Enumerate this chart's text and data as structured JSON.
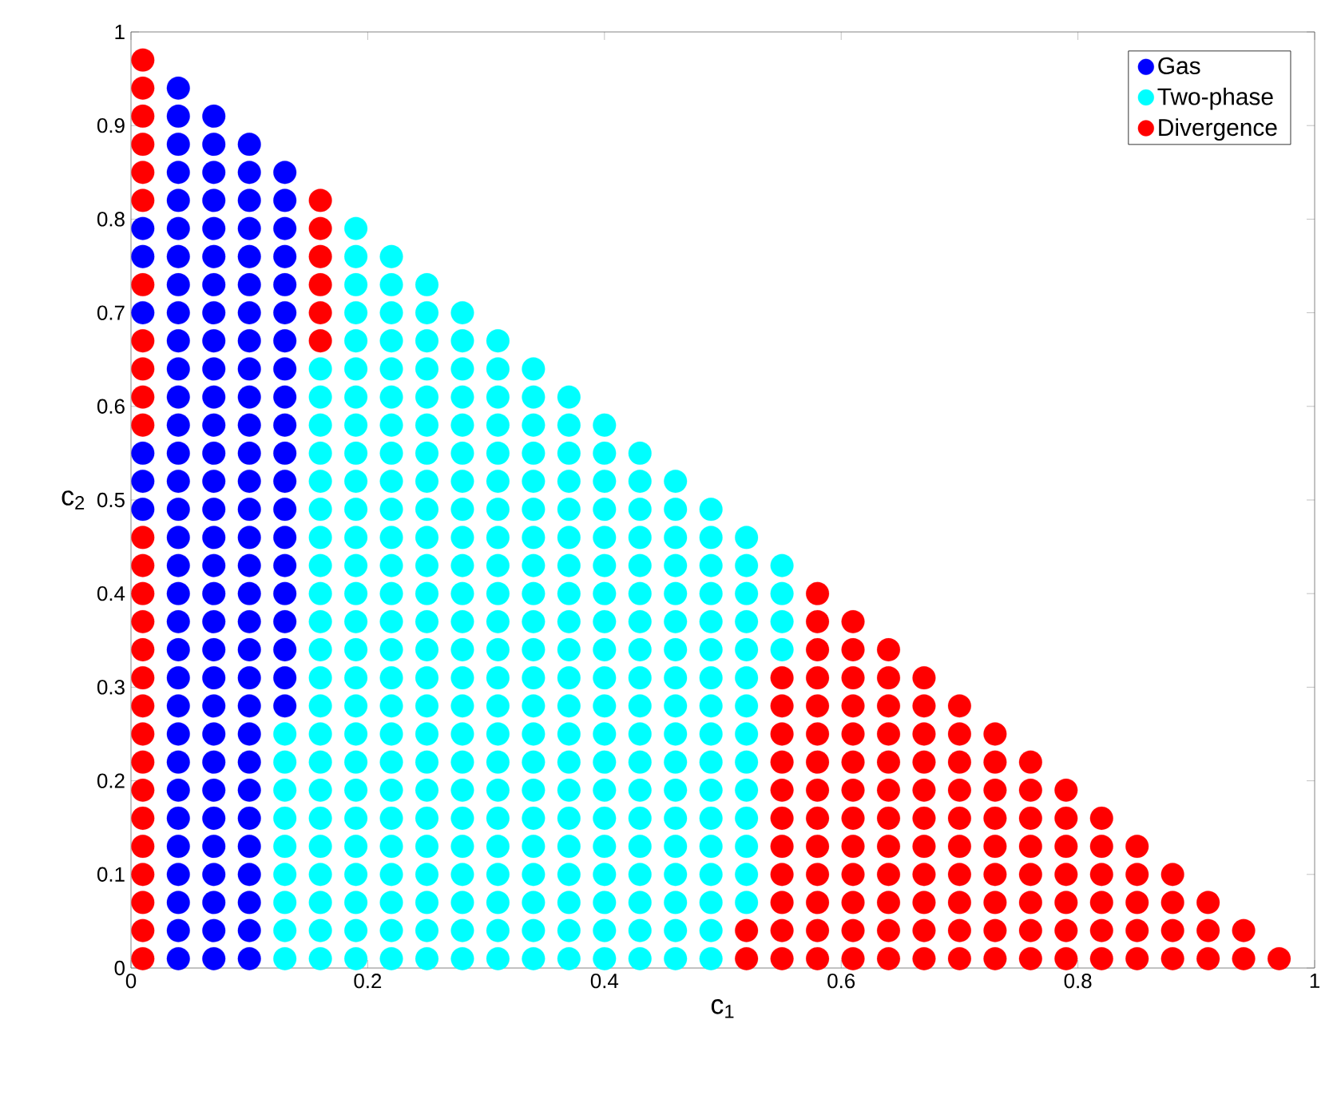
{
  "chart_data": {
    "type": "scatter",
    "xlabel": "c$_{1}$",
    "ylabel": "c$_{2}$",
    "xlim": [
      0,
      1
    ],
    "ylim": [
      0,
      1
    ],
    "xticks": [
      0,
      0.2,
      0.4,
      0.6,
      0.8,
      1
    ],
    "yticks": [
      0,
      0.1,
      0.2,
      0.3,
      0.4,
      0.5,
      0.6,
      0.7,
      0.8,
      0.9,
      1
    ],
    "legend": "top right",
    "marker": "circle",
    "series": [
      {
        "name": "Gas",
        "color": "#0000ff",
        "x": [
          0.01,
          0.01,
          0.01,
          0.01,
          0.01,
          0.01,
          0.04,
          0.04,
          0.04,
          0.04,
          0.04,
          0.04,
          0.04,
          0.04,
          0.04,
          0.04,
          0.04,
          0.04,
          0.04,
          0.04,
          0.04,
          0.04,
          0.04,
          0.04,
          0.04,
          0.04,
          0.04,
          0.04,
          0.04,
          0.04,
          0.04,
          0.04,
          0.04,
          0.04,
          0.04,
          0.04,
          0.04,
          0.04,
          0.07,
          0.07,
          0.07,
          0.07,
          0.07,
          0.07,
          0.07,
          0.07,
          0.07,
          0.07,
          0.07,
          0.07,
          0.07,
          0.07,
          0.07,
          0.07,
          0.07,
          0.07,
          0.07,
          0.07,
          0.07,
          0.07,
          0.07,
          0.07,
          0.07,
          0.07,
          0.07,
          0.07,
          0.07,
          0.07,
          0.07,
          0.1,
          0.1,
          0.1,
          0.1,
          0.1,
          0.1,
          0.1,
          0.1,
          0.1,
          0.1,
          0.1,
          0.1,
          0.1,
          0.1,
          0.1,
          0.1,
          0.1,
          0.1,
          0.1,
          0.1,
          0.1,
          0.1,
          0.1,
          0.1,
          0.1,
          0.1,
          0.1,
          0.1,
          0.1,
          0.1,
          0.13,
          0.13,
          0.13,
          0.13,
          0.13,
          0.13,
          0.13,
          0.13,
          0.13,
          0.13,
          0.13,
          0.13,
          0.13,
          0.13,
          0.13,
          0.13,
          0.13,
          0.13,
          0.13,
          0.13
        ],
        "values": [
          0.49,
          0.52,
          0.55,
          0.7,
          0.76,
          0.79,
          0.01,
          0.04,
          0.07,
          0.1,
          0.13,
          0.16,
          0.19,
          0.22,
          0.25,
          0.28,
          0.31,
          0.34,
          0.37,
          0.4,
          0.43,
          0.46,
          0.49,
          0.52,
          0.55,
          0.58,
          0.61,
          0.64,
          0.67,
          0.7,
          0.73,
          0.76,
          0.79,
          0.82,
          0.85,
          0.88,
          0.91,
          0.94,
          0.01,
          0.04,
          0.07,
          0.1,
          0.13,
          0.16,
          0.19,
          0.22,
          0.25,
          0.28,
          0.31,
          0.34,
          0.37,
          0.4,
          0.43,
          0.46,
          0.49,
          0.52,
          0.55,
          0.58,
          0.61,
          0.64,
          0.67,
          0.7,
          0.73,
          0.76,
          0.79,
          0.82,
          0.85,
          0.88,
          0.91,
          0.01,
          0.04,
          0.07,
          0.1,
          0.13,
          0.16,
          0.19,
          0.22,
          0.25,
          0.28,
          0.31,
          0.34,
          0.37,
          0.4,
          0.43,
          0.46,
          0.49,
          0.52,
          0.55,
          0.58,
          0.61,
          0.64,
          0.67,
          0.7,
          0.73,
          0.76,
          0.79,
          0.82,
          0.85,
          0.88,
          0.28,
          0.31,
          0.34,
          0.37,
          0.4,
          0.43,
          0.46,
          0.49,
          0.52,
          0.55,
          0.58,
          0.61,
          0.64,
          0.67,
          0.7,
          0.73,
          0.76,
          0.79,
          0.82,
          0.85
        ]
      },
      {
        "name": "Two-phase",
        "color": "#00ffff",
        "x": [
          0.13,
          0.13,
          0.13,
          0.13,
          0.13,
          0.13,
          0.13,
          0.13,
          0.13,
          0.16,
          0.16,
          0.16,
          0.16,
          0.16,
          0.16,
          0.16,
          0.16,
          0.16,
          0.16,
          0.16,
          0.16,
          0.16,
          0.16,
          0.16,
          0.16,
          0.16,
          0.16,
          0.16,
          0.16,
          0.16,
          0.16,
          0.19,
          0.19,
          0.19,
          0.19,
          0.19,
          0.19,
          0.19,
          0.19,
          0.19,
          0.19,
          0.19,
          0.19,
          0.19,
          0.19,
          0.19,
          0.19,
          0.19,
          0.19,
          0.19,
          0.19,
          0.19,
          0.19,
          0.19,
          0.19,
          0.19,
          0.19,
          0.19,
          0.22,
          0.22,
          0.22,
          0.22,
          0.22,
          0.22,
          0.22,
          0.22,
          0.22,
          0.22,
          0.22,
          0.22,
          0.22,
          0.22,
          0.22,
          0.22,
          0.22,
          0.22,
          0.22,
          0.22,
          0.22,
          0.22,
          0.22,
          0.22,
          0.22,
          0.22,
          0.25,
          0.25,
          0.25,
          0.25,
          0.25,
          0.25,
          0.25,
          0.25,
          0.25,
          0.25,
          0.25,
          0.25,
          0.25,
          0.25,
          0.25,
          0.25,
          0.25,
          0.25,
          0.25,
          0.25,
          0.25,
          0.25,
          0.25,
          0.25,
          0.25,
          0.28,
          0.28,
          0.28,
          0.28,
          0.28,
          0.28,
          0.28,
          0.28,
          0.28,
          0.28,
          0.28,
          0.28,
          0.28,
          0.28,
          0.28,
          0.28,
          0.28,
          0.28,
          0.28,
          0.28,
          0.28,
          0.28,
          0.28,
          0.28,
          0.31,
          0.31,
          0.31,
          0.31,
          0.31,
          0.31,
          0.31,
          0.31,
          0.31,
          0.31,
          0.31,
          0.31,
          0.31,
          0.31,
          0.31,
          0.31,
          0.31,
          0.31,
          0.31,
          0.31,
          0.31,
          0.31,
          0.31,
          0.34,
          0.34,
          0.34,
          0.34,
          0.34,
          0.34,
          0.34,
          0.34,
          0.34,
          0.34,
          0.34,
          0.34,
          0.34,
          0.34,
          0.34,
          0.34,
          0.34,
          0.34,
          0.34,
          0.34,
          0.34,
          0.34,
          0.37,
          0.37,
          0.37,
          0.37,
          0.37,
          0.37,
          0.37,
          0.37,
          0.37,
          0.37,
          0.37,
          0.37,
          0.37,
          0.37,
          0.37,
          0.37,
          0.37,
          0.37,
          0.37,
          0.37,
          0.37,
          0.4,
          0.4,
          0.4,
          0.4,
          0.4,
          0.4,
          0.4,
          0.4,
          0.4,
          0.4,
          0.4,
          0.4,
          0.4,
          0.4,
          0.4,
          0.4,
          0.4,
          0.4,
          0.4,
          0.4,
          0.43,
          0.43,
          0.43,
          0.43,
          0.43,
          0.43,
          0.43,
          0.43,
          0.43,
          0.43,
          0.43,
          0.43,
          0.43,
          0.43,
          0.43,
          0.43,
          0.43,
          0.43,
          0.43,
          0.46,
          0.46,
          0.46,
          0.46,
          0.46,
          0.46,
          0.46,
          0.46,
          0.46,
          0.46,
          0.46,
          0.46,
          0.46,
          0.46,
          0.46,
          0.46,
          0.46,
          0.46,
          0.49,
          0.49,
          0.49,
          0.49,
          0.49,
          0.49,
          0.49,
          0.49,
          0.49,
          0.49,
          0.49,
          0.49,
          0.49,
          0.49,
          0.49,
          0.49,
          0.49,
          0.52,
          0.52,
          0.52,
          0.52,
          0.52,
          0.52,
          0.52,
          0.52,
          0.52,
          0.52,
          0.52,
          0.52,
          0.52,
          0.52,
          0.55,
          0.55,
          0.55,
          0.55
        ],
        "values": [
          0.01,
          0.04,
          0.07,
          0.1,
          0.13,
          0.16,
          0.19,
          0.22,
          0.25,
          0.01,
          0.04,
          0.07,
          0.1,
          0.13,
          0.16,
          0.19,
          0.22,
          0.25,
          0.28,
          0.31,
          0.34,
          0.37,
          0.4,
          0.43,
          0.46,
          0.49,
          0.52,
          0.55,
          0.58,
          0.61,
          0.64,
          0.01,
          0.04,
          0.07,
          0.1,
          0.13,
          0.16,
          0.19,
          0.22,
          0.25,
          0.28,
          0.31,
          0.34,
          0.37,
          0.4,
          0.43,
          0.46,
          0.49,
          0.52,
          0.55,
          0.58,
          0.61,
          0.64,
          0.67,
          0.7,
          0.73,
          0.76,
          0.79,
          0.01,
          0.04,
          0.07,
          0.1,
          0.13,
          0.16,
          0.19,
          0.22,
          0.25,
          0.28,
          0.31,
          0.34,
          0.37,
          0.4,
          0.43,
          0.46,
          0.49,
          0.52,
          0.55,
          0.58,
          0.61,
          0.64,
          0.67,
          0.7,
          0.73,
          0.76,
          0.01,
          0.04,
          0.07,
          0.1,
          0.13,
          0.16,
          0.19,
          0.22,
          0.25,
          0.28,
          0.31,
          0.34,
          0.37,
          0.4,
          0.43,
          0.46,
          0.49,
          0.52,
          0.55,
          0.58,
          0.61,
          0.64,
          0.67,
          0.7,
          0.73,
          0.01,
          0.04,
          0.07,
          0.1,
          0.13,
          0.16,
          0.19,
          0.22,
          0.25,
          0.28,
          0.31,
          0.34,
          0.37,
          0.4,
          0.43,
          0.46,
          0.49,
          0.52,
          0.55,
          0.58,
          0.61,
          0.64,
          0.67,
          0.7,
          0.01,
          0.04,
          0.07,
          0.1,
          0.13,
          0.16,
          0.19,
          0.22,
          0.25,
          0.28,
          0.31,
          0.34,
          0.37,
          0.4,
          0.43,
          0.46,
          0.49,
          0.52,
          0.55,
          0.58,
          0.61,
          0.64,
          0.67,
          0.01,
          0.04,
          0.07,
          0.1,
          0.13,
          0.16,
          0.19,
          0.22,
          0.25,
          0.28,
          0.31,
          0.34,
          0.37,
          0.4,
          0.43,
          0.46,
          0.49,
          0.52,
          0.55,
          0.58,
          0.61,
          0.64,
          0.01,
          0.04,
          0.07,
          0.1,
          0.13,
          0.16,
          0.19,
          0.22,
          0.25,
          0.28,
          0.31,
          0.34,
          0.37,
          0.4,
          0.43,
          0.46,
          0.49,
          0.52,
          0.55,
          0.58,
          0.61,
          0.01,
          0.04,
          0.07,
          0.1,
          0.13,
          0.16,
          0.19,
          0.22,
          0.25,
          0.28,
          0.31,
          0.34,
          0.37,
          0.4,
          0.43,
          0.46,
          0.49,
          0.52,
          0.55,
          0.58,
          0.01,
          0.04,
          0.07,
          0.1,
          0.13,
          0.16,
          0.19,
          0.22,
          0.25,
          0.28,
          0.31,
          0.34,
          0.37,
          0.4,
          0.43,
          0.46,
          0.49,
          0.52,
          0.55,
          0.01,
          0.04,
          0.07,
          0.1,
          0.13,
          0.16,
          0.19,
          0.22,
          0.25,
          0.28,
          0.31,
          0.34,
          0.37,
          0.4,
          0.43,
          0.46,
          0.49,
          0.52,
          0.01,
          0.04,
          0.07,
          0.1,
          0.13,
          0.16,
          0.19,
          0.22,
          0.25,
          0.28,
          0.31,
          0.34,
          0.37,
          0.4,
          0.43,
          0.46,
          0.49,
          0.07,
          0.1,
          0.13,
          0.16,
          0.19,
          0.22,
          0.25,
          0.28,
          0.31,
          0.34,
          0.37,
          0.4,
          0.43,
          0.46,
          0.34,
          0.37,
          0.4,
          0.43
        ]
      },
      {
        "name": "Divergence",
        "color": "#ff0000",
        "x": [
          0.01,
          0.01,
          0.01,
          0.01,
          0.01,
          0.01,
          0.01,
          0.01,
          0.01,
          0.01,
          0.01,
          0.01,
          0.01,
          0.01,
          0.01,
          0.01,
          0.01,
          0.01,
          0.01,
          0.01,
          0.01,
          0.01,
          0.01,
          0.01,
          0.01,
          0.01,
          0.01,
          0.16,
          0.16,
          0.16,
          0.16,
          0.16,
          0.16,
          0.52,
          0.52,
          0.55,
          0.55,
          0.55,
          0.55,
          0.55,
          0.55,
          0.55,
          0.55,
          0.55,
          0.55,
          0.55,
          0.58,
          0.58,
          0.58,
          0.58,
          0.58,
          0.58,
          0.58,
          0.58,
          0.58,
          0.58,
          0.58,
          0.58,
          0.58,
          0.58,
          0.61,
          0.61,
          0.61,
          0.61,
          0.61,
          0.61,
          0.61,
          0.61,
          0.61,
          0.61,
          0.61,
          0.61,
          0.61,
          0.64,
          0.64,
          0.64,
          0.64,
          0.64,
          0.64,
          0.64,
          0.64,
          0.64,
          0.64,
          0.64,
          0.64,
          0.67,
          0.67,
          0.67,
          0.67,
          0.67,
          0.67,
          0.67,
          0.67,
          0.67,
          0.67,
          0.67,
          0.7,
          0.7,
          0.7,
          0.7,
          0.7,
          0.7,
          0.7,
          0.7,
          0.7,
          0.7,
          0.73,
          0.73,
          0.73,
          0.73,
          0.73,
          0.73,
          0.73,
          0.73,
          0.73,
          0.76,
          0.76,
          0.76,
          0.76,
          0.76,
          0.76,
          0.76,
          0.76,
          0.79,
          0.79,
          0.79,
          0.79,
          0.79,
          0.79,
          0.79,
          0.82,
          0.82,
          0.82,
          0.82,
          0.82,
          0.82,
          0.85,
          0.85,
          0.85,
          0.85,
          0.85,
          0.88,
          0.88,
          0.88,
          0.88,
          0.91,
          0.91,
          0.91,
          0.94,
          0.94,
          0.97
        ],
        "values": [
          0.01,
          0.04,
          0.07,
          0.1,
          0.13,
          0.16,
          0.19,
          0.22,
          0.25,
          0.28,
          0.31,
          0.34,
          0.37,
          0.4,
          0.43,
          0.46,
          0.58,
          0.61,
          0.64,
          0.67,
          0.73,
          0.82,
          0.85,
          0.88,
          0.91,
          0.94,
          0.97,
          0.67,
          0.7,
          0.73,
          0.76,
          0.79,
          0.82,
          0.01,
          0.04,
          0.01,
          0.04,
          0.07,
          0.1,
          0.13,
          0.16,
          0.19,
          0.22,
          0.25,
          0.28,
          0.31,
          0.01,
          0.04,
          0.07,
          0.1,
          0.13,
          0.16,
          0.19,
          0.22,
          0.25,
          0.28,
          0.31,
          0.34,
          0.37,
          0.4,
          0.01,
          0.04,
          0.07,
          0.1,
          0.13,
          0.16,
          0.19,
          0.22,
          0.25,
          0.28,
          0.31,
          0.34,
          0.37,
          0.01,
          0.04,
          0.07,
          0.1,
          0.13,
          0.16,
          0.19,
          0.22,
          0.25,
          0.28,
          0.31,
          0.34,
          0.01,
          0.04,
          0.07,
          0.1,
          0.13,
          0.16,
          0.19,
          0.22,
          0.25,
          0.28,
          0.31,
          0.01,
          0.04,
          0.07,
          0.1,
          0.13,
          0.16,
          0.19,
          0.22,
          0.25,
          0.28,
          0.01,
          0.04,
          0.07,
          0.1,
          0.13,
          0.16,
          0.19,
          0.22,
          0.25,
          0.01,
          0.04,
          0.07,
          0.1,
          0.13,
          0.16,
          0.19,
          0.22,
          0.01,
          0.04,
          0.07,
          0.1,
          0.13,
          0.16,
          0.19,
          0.01,
          0.04,
          0.07,
          0.1,
          0.13,
          0.16,
          0.01,
          0.04,
          0.07,
          0.1,
          0.13,
          0.01,
          0.04,
          0.07,
          0.1,
          0.01,
          0.04,
          0.07,
          0.01,
          0.04,
          0.01
        ]
      }
    ]
  }
}
